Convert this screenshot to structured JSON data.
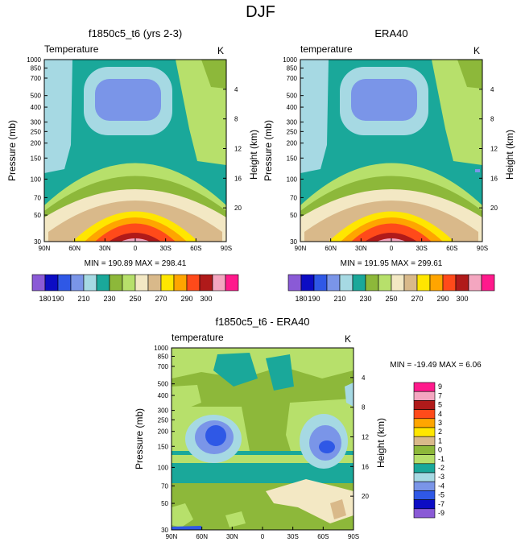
{
  "page": {
    "title": "DJF"
  },
  "chart_data": [
    {
      "type": "heatmap",
      "title": "f1850c5_t6 (yrs 2-3)",
      "left_label": "Temperature",
      "right_label": "K",
      "xlabel": "",
      "ylabel": "Pressure (mb)",
      "y2label": "Height (km)",
      "x_ticks": [
        "90N",
        "60N",
        "30N",
        "0",
        "30S",
        "60S",
        "90S"
      ],
      "y_ticks": [
        30,
        50,
        70,
        100,
        150,
        200,
        250,
        300,
        400,
        500,
        700,
        850,
        1000
      ],
      "y2_ticks": [
        4,
        8,
        12,
        16,
        20
      ],
      "ylim": [
        1000,
        30
      ],
      "xlim": [
        90,
        -90
      ],
      "stats": "MIN = 190.89   MAX = 298.41",
      "min": 190.89,
      "max": 298.41,
      "colorbar": {
        "orientation": "horizontal",
        "levels": [
          180,
          190,
          200,
          210,
          220,
          230,
          240,
          250,
          260,
          270,
          280,
          290,
          300
        ],
        "tick_labels": [
          "180",
          "190",
          "210",
          "230",
          "250",
          "270",
          "290",
          "300"
        ]
      }
    },
    {
      "type": "heatmap",
      "title": "ERA40",
      "left_label": "temperature",
      "right_label": "K",
      "xlabel": "",
      "ylabel": "Pressure (mb)",
      "y2label": "Height (km)",
      "x_ticks": [
        "90N",
        "60N",
        "30N",
        "0",
        "30S",
        "60S",
        "90S"
      ],
      "y_ticks": [
        30,
        50,
        70,
        100,
        150,
        200,
        250,
        300,
        400,
        500,
        700,
        850,
        1000
      ],
      "y2_ticks": [
        4,
        8,
        12,
        16,
        20
      ],
      "ylim": [
        1000,
        30
      ],
      "xlim": [
        90,
        -90
      ],
      "stats": "MIN = 191.95   MAX = 299.61",
      "min": 191.95,
      "max": 299.61,
      "colorbar": {
        "orientation": "horizontal",
        "levels": [
          180,
          190,
          200,
          210,
          220,
          230,
          240,
          250,
          260,
          270,
          280,
          290,
          300
        ],
        "tick_labels": [
          "180",
          "190",
          "210",
          "230",
          "250",
          "270",
          "290",
          "300"
        ]
      }
    },
    {
      "type": "heatmap",
      "title": "f1850c5_t6 - ERA40",
      "left_label": "temperature",
      "right_label": "K",
      "xlabel": "",
      "ylabel": "Pressure (mb)",
      "y2label": "Height (km)",
      "x_ticks": [
        "90N",
        "60N",
        "30N",
        "0",
        "30S",
        "60S",
        "90S"
      ],
      "y_ticks": [
        30,
        50,
        70,
        100,
        150,
        200,
        250,
        300,
        400,
        500,
        700,
        850,
        1000
      ],
      "y2_ticks": [
        4,
        8,
        12,
        16,
        20
      ],
      "ylim": [
        1000,
        30
      ],
      "xlim": [
        90,
        -90
      ],
      "stats": "MIN = -19.49  MAX =   6.06",
      "min": -19.49,
      "max": 6.06,
      "colorbar": {
        "orientation": "vertical",
        "levels": [
          -9,
          -7,
          -5,
          -4,
          -3,
          -2,
          -1,
          0,
          1,
          2,
          3,
          4,
          5,
          7,
          9
        ],
        "tick_labels": [
          "9",
          "7",
          "5",
          "4",
          "3",
          "2",
          "1",
          "0",
          "-1",
          "-2",
          "-3",
          "-4",
          "-5",
          "-7",
          "-9"
        ]
      }
    }
  ],
  "colors": {
    "abs_fills": [
      "#8a5ad6",
      "#0c0cc4",
      "#2f58e6",
      "#7a95e8",
      "#a6d9e3",
      "#1aa89a",
      "#8db83a",
      "#b7e06b",
      "#f3e8c4",
      "#d9b98a",
      "#ffe600",
      "#ffa500",
      "#ff4a1a",
      "#b01a1a",
      "#f4a6c0",
      "#ff1a8c"
    ],
    "diff_fills": [
      "#8a5ad6",
      "#0c0cc4",
      "#2f58e6",
      "#7a95e8",
      "#a6d9e3",
      "#1aa89a",
      "#b7e06b",
      "#8db83a",
      "#d9b98a",
      "#ffe600",
      "#ffa500",
      "#ff4a1a",
      "#b01a1a",
      "#f4a6c0",
      "#ff1a8c"
    ]
  }
}
